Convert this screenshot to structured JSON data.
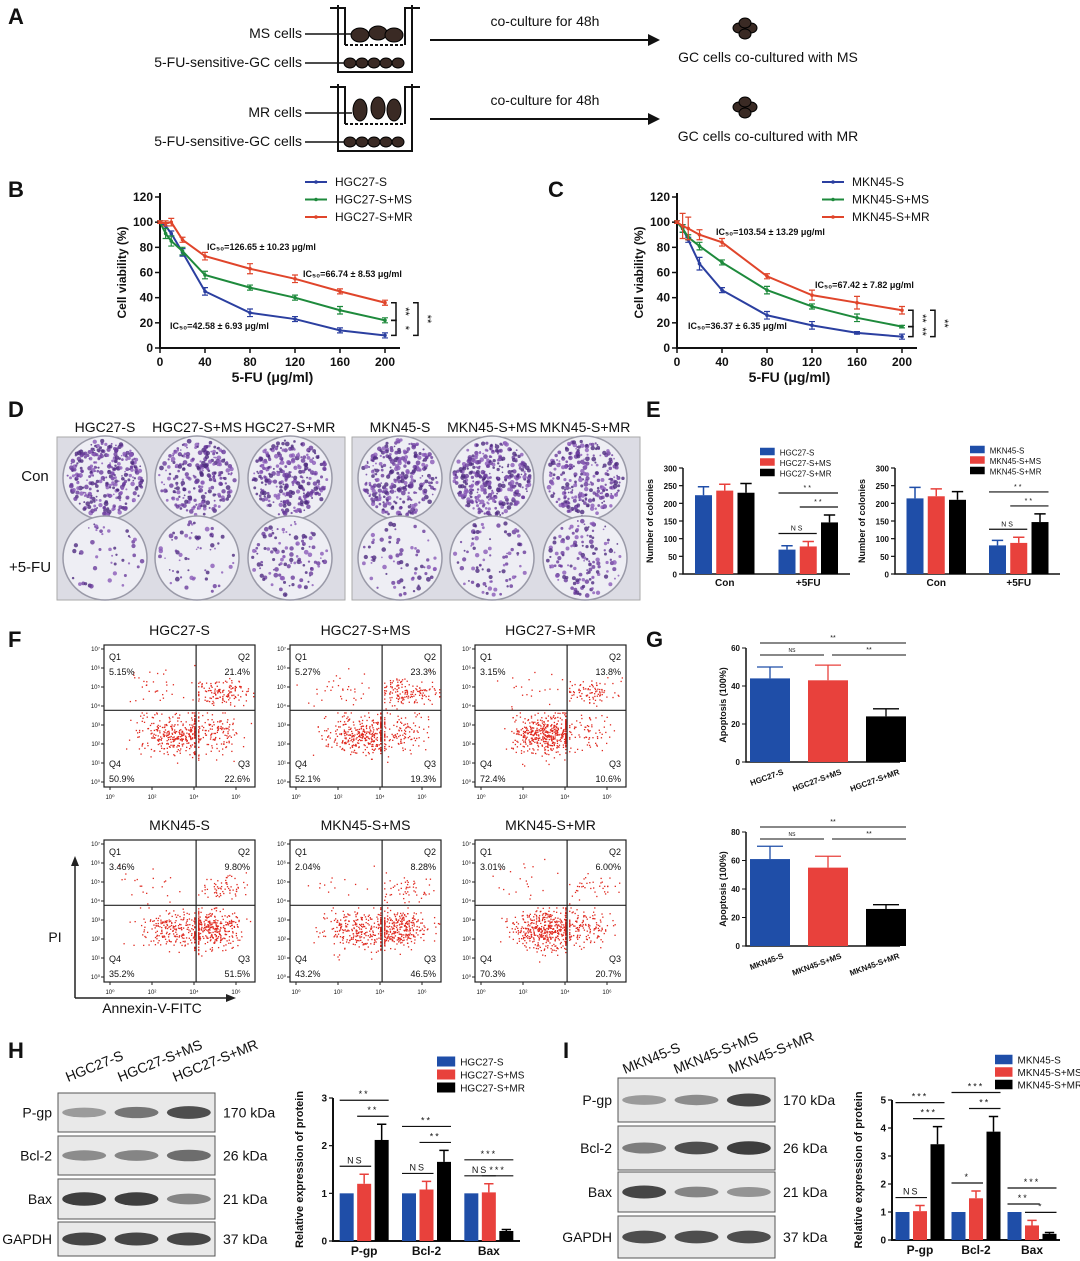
{
  "panel_labels": [
    "A",
    "B",
    "C",
    "D",
    "E",
    "F",
    "G",
    "H",
    "I"
  ],
  "panel_a": {
    "rows": [
      {
        "donor": "MS cells",
        "recipient": "5-FU-sensitive-GC cells",
        "arrow_label": "co-culture for 48h",
        "result": "GC cells co-cultured with MS"
      },
      {
        "donor": "MR cells",
        "recipient": "5-FU-sensitive-GC cells",
        "arrow_label": "co-culture for 48h",
        "result": "GC cells co-cultured with MR"
      }
    ]
  },
  "panel_d": {
    "headers": [
      "HGC27-S",
      "HGC27-S+MS",
      "HGC27-S+MR",
      "MKN45-S",
      "MKN45-S+MS",
      "MKN45-S+MR"
    ],
    "row_labels": [
      "Con",
      "+5-FU"
    ]
  },
  "panel_f": {
    "quadrant_names": [
      "Q1",
      "Q2",
      "Q3",
      "Q4"
    ],
    "x_ticks": [
      "10⁰",
      "10²",
      "10⁴",
      "10⁶"
    ],
    "y_ticks": [
      "10⁰",
      "10¹",
      "10²",
      "10³",
      "10⁴",
      "10⁵",
      "10⁶",
      "10⁷"
    ],
    "x_axis_label": "Annexin-V-FITC",
    "y_axis_label": "PI",
    "dot_color": "#e0281e",
    "plots": [
      {
        "title": "HGC27-S",
        "q1": "5.15%",
        "q2": "21.4%",
        "q3": "22.6%",
        "q4": "50.9%"
      },
      {
        "title": "HGC27-S+MS",
        "q1": "5.27%",
        "q2": "23.3%",
        "q3": "19.3%",
        "q4": "52.1%"
      },
      {
        "title": "HGC27-S+MR",
        "q1": "3.15%",
        "q2": "13.8%",
        "q3": "10.6%",
        "q4": "72.4%"
      },
      {
        "title": "MKN45-S",
        "q1": "3.46%",
        "q2": "9.80%",
        "q3": "51.5%",
        "q4": "35.2%"
      },
      {
        "title": "MKN45-S+MS",
        "q1": "2.04%",
        "q2": "8.28%",
        "q3": "46.5%",
        "q4": "43.2%"
      },
      {
        "title": "MKN45-S+MR",
        "q1": "3.01%",
        "q2": "6.00%",
        "q3": "20.7%",
        "q4": "70.3%"
      }
    ]
  },
  "panel_h": {
    "lanes": [
      "HGC27-S",
      "HGC27-S+MS",
      "HGC27-S+MR"
    ],
    "proteins": [
      "P-gp",
      "Bcl-2",
      "Bax",
      "GAPDH"
    ],
    "sizes": [
      "170 kDa",
      "26 kDa",
      "21 kDa",
      "37 kDa"
    ]
  },
  "panel_i": {
    "lanes": [
      "MKN45-S",
      "MKN45-S+MS",
      "MKN45-S+MR"
    ],
    "proteins": [
      "P-gp",
      "Bcl-2",
      "Bax",
      "GAPDH"
    ],
    "sizes": [
      "170 kDa",
      "26 kDa",
      "21 kDa",
      "37 kDa"
    ]
  },
  "chart_data": [
    {
      "panel": "B",
      "type": "line",
      "x": [
        0,
        5,
        10,
        20,
        40,
        80,
        120,
        160,
        200
      ],
      "xlabel": "5-FU (μg/ml)",
      "ylabel": "Cell viability (%)",
      "xlim": [
        0,
        200
      ],
      "ylim": [
        0,
        120
      ],
      "xticks": [
        0,
        40,
        80,
        120,
        160,
        200
      ],
      "yticks": [
        0,
        20,
        40,
        60,
        80,
        100,
        120
      ],
      "legend": "top-right",
      "series": [
        {
          "name": "HGC27-S",
          "color": "#2b3fa0",
          "values": [
            100,
            97,
            91,
            76,
            45,
            28,
            23,
            14,
            10
          ],
          "errors": [
            1,
            2,
            2,
            3,
            3,
            3,
            2,
            2,
            2
          ],
          "ic50": "IC₅₀=42.58 ± 6.93 μg/ml"
        },
        {
          "name": "HGC27-S+MS",
          "color": "#1e8a3c",
          "values": [
            100,
            91,
            85,
            77,
            58,
            48,
            40,
            30,
            22
          ],
          "errors": [
            1,
            4,
            4,
            3,
            3,
            2,
            2,
            3,
            2
          ],
          "ic50": "IC₅₀=66.74 ± 8.53 μg/ml"
        },
        {
          "name": "HGC27-S+MR",
          "color": "#e0452b",
          "values": [
            100,
            99,
            100,
            86,
            73,
            63,
            55,
            45,
            36
          ],
          "errors": [
            1,
            2,
            3,
            2,
            3,
            4,
            3,
            2,
            2
          ],
          "ic50": "IC₅₀=126.65 ± 10.23 μg/ml"
        }
      ],
      "significance": [
        {
          "a": 2,
          "b": 1,
          "label": "**"
        },
        {
          "a": 1,
          "b": 0,
          "label": "*"
        },
        {
          "a": 2,
          "b": 0,
          "label": "**"
        }
      ]
    },
    {
      "panel": "C",
      "type": "line",
      "x": [
        0,
        5,
        10,
        20,
        40,
        80,
        120,
        160,
        200
      ],
      "xlabel": "5-FU (μg/ml)",
      "ylabel": "Cell viability (%)",
      "xlim": [
        0,
        200
      ],
      "ylim": [
        0,
        120
      ],
      "xticks": [
        0,
        40,
        80,
        120,
        160,
        200
      ],
      "yticks": [
        0,
        20,
        40,
        60,
        80,
        100,
        120
      ],
      "legend": "top-right",
      "series": [
        {
          "name": "MKN45-S",
          "color": "#2b3fa0",
          "values": [
            100,
            95,
            86,
            67,
            46,
            26,
            18,
            12,
            9
          ],
          "errors": [
            1,
            3,
            2,
            5,
            2,
            3,
            3,
            1,
            2
          ],
          "ic50": "IC₅₀=36.37 ± 6.35 μg/ml"
        },
        {
          "name": "MKN45-S+MS",
          "color": "#1e8a3c",
          "values": [
            100,
            95,
            88,
            81,
            68,
            46,
            33,
            24,
            17
          ],
          "errors": [
            1,
            3,
            2,
            3,
            2,
            3,
            2,
            3,
            1
          ],
          "ic50": "IC₅₀=67.42 ± 7.82 μg/ml"
        },
        {
          "name": "MKN45-S+MR",
          "color": "#e0452b",
          "values": [
            100,
            97,
            95,
            90,
            84,
            57,
            42,
            36,
            30
          ],
          "errors": [
            1,
            10,
            9,
            4,
            3,
            2,
            4,
            5,
            3
          ],
          "ic50": "IC₅₀=103.54 ± 13.29 μg/ml"
        }
      ],
      "significance": [
        {
          "a": 2,
          "b": 1,
          "label": "**"
        },
        {
          "a": 1,
          "b": 0,
          "label": "**"
        },
        {
          "a": 2,
          "b": 0,
          "label": "**"
        }
      ]
    },
    {
      "panel": "E",
      "type": "bar",
      "categories": [
        "Con",
        "+5FU"
      ],
      "ylabel": "Number of colonies",
      "ylim": [
        0,
        300
      ],
      "yticks": [
        0,
        50,
        100,
        150,
        200,
        250,
        300
      ],
      "legend": "top-right",
      "series": [
        {
          "name": "HGC27-S",
          "color": "#1f4ea8",
          "values": [
            223,
            69
          ],
          "errors": [
            24,
            11
          ]
        },
        {
          "name": "HGC27-S+MS",
          "color": "#e8413c",
          "values": [
            236,
            78
          ],
          "errors": [
            18,
            14
          ]
        },
        {
          "name": "HGC27-S+MR",
          "color": "#000000",
          "values": [
            230,
            146
          ],
          "errors": [
            26,
            21
          ]
        }
      ],
      "significance": [
        {
          "cat": 1,
          "a": 0,
          "b": 1,
          "label": "NS"
        },
        {
          "cat": 1,
          "a": 1,
          "b": 2,
          "label": "**"
        },
        {
          "cat": 1,
          "a": 0,
          "b": 2,
          "label": "**"
        }
      ]
    },
    {
      "panel": "E",
      "type": "bar",
      "categories": [
        "Con",
        "+5FU"
      ],
      "ylabel": "Number of colonies",
      "ylim": [
        0,
        300
      ],
      "yticks": [
        0,
        50,
        100,
        150,
        200,
        250,
        300
      ],
      "legend": "top-right",
      "series": [
        {
          "name": "MKN45-S",
          "color": "#1f4ea8",
          "values": [
            214,
            81
          ],
          "errors": [
            31,
            14
          ]
        },
        {
          "name": "MKN45-S+MS",
          "color": "#e8413c",
          "values": [
            220,
            88
          ],
          "errors": [
            21,
            16
          ]
        },
        {
          "name": "MKN45-S+MR",
          "color": "#000000",
          "values": [
            210,
            147
          ],
          "errors": [
            23,
            23
          ]
        }
      ],
      "significance": [
        {
          "cat": 1,
          "a": 0,
          "b": 1,
          "label": "NS"
        },
        {
          "cat": 1,
          "a": 1,
          "b": 2,
          "label": "**"
        },
        {
          "cat": 1,
          "a": 0,
          "b": 2,
          "label": "**"
        }
      ]
    },
    {
      "panel": "G",
      "type": "bar",
      "categories": [
        "HGC27-S",
        "HGC27-S+MS",
        "HGC27-S+MR"
      ],
      "ylabel": "Apoptosis (100%)",
      "ylim": [
        0,
        60
      ],
      "yticks": [
        0,
        20,
        40,
        60
      ],
      "values": [
        44,
        43,
        24
      ],
      "errors": [
        6,
        8,
        4
      ],
      "colors": [
        "#1f4ea8",
        "#e8413c",
        "#000000"
      ],
      "significance": [
        {
          "a": 0,
          "b": 1,
          "label": "NS"
        },
        {
          "a": 1,
          "b": 2,
          "label": "**"
        },
        {
          "a": 0,
          "b": 2,
          "label": "**"
        }
      ]
    },
    {
      "panel": "G",
      "type": "bar",
      "categories": [
        "MKN45-S",
        "MKN45-S+MS",
        "MKN45-S+MR"
      ],
      "ylabel": "Apoptosis (100%)",
      "ylim": [
        0,
        80
      ],
      "yticks": [
        0,
        20,
        40,
        60,
        80
      ],
      "values": [
        61,
        55,
        26
      ],
      "errors": [
        9,
        8,
        3
      ],
      "colors": [
        "#1f4ea8",
        "#e8413c",
        "#000000"
      ],
      "significance": [
        {
          "a": 0,
          "b": 1,
          "label": "NS"
        },
        {
          "a": 1,
          "b": 2,
          "label": "**"
        },
        {
          "a": 0,
          "b": 2,
          "label": "**"
        }
      ]
    },
    {
      "panel": "H",
      "type": "bar",
      "categories": [
        "P-gp",
        "Bcl-2",
        "Bax"
      ],
      "ylabel": "Relative expression of protein",
      "ylim": [
        0,
        3
      ],
      "yticks": [
        0,
        1,
        2,
        3
      ],
      "legend": "top-right",
      "series": [
        {
          "name": "HGC27-S",
          "color": "#1f4ea8",
          "values": [
            1,
            1,
            1
          ],
          "errors": [
            0,
            0,
            0
          ]
        },
        {
          "name": "HGC27-S+MS",
          "color": "#e8413c",
          "values": [
            1.2,
            1.08,
            1.02
          ],
          "errors": [
            0.2,
            0.17,
            0.18
          ]
        },
        {
          "name": "HGC27-S+MR",
          "color": "#000000",
          "values": [
            2.12,
            1.66,
            0.21
          ],
          "errors": [
            0.33,
            0.24,
            0.03
          ]
        }
      ],
      "significance": [
        {
          "cat": 0,
          "a": 0,
          "b": 1,
          "label": "NS"
        },
        {
          "cat": 0,
          "a": 1,
          "b": 2,
          "label": "**"
        },
        {
          "cat": 0,
          "a": 0,
          "b": 2,
          "label": "**"
        },
        {
          "cat": 1,
          "a": 0,
          "b": 1,
          "label": "NS"
        },
        {
          "cat": 1,
          "a": 1,
          "b": 2,
          "label": "**"
        },
        {
          "cat": 1,
          "a": 0,
          "b": 2,
          "label": "**"
        },
        {
          "cat": 2,
          "a": 0,
          "b": 1,
          "label": "NS"
        },
        {
          "cat": 2,
          "a": 1,
          "b": 2,
          "label": "***"
        },
        {
          "cat": 2,
          "a": 0,
          "b": 2,
          "label": "***"
        }
      ]
    },
    {
      "panel": "I",
      "type": "bar",
      "categories": [
        "P-gp",
        "Bcl-2",
        "Bax"
      ],
      "ylabel": "Relative expression of protein",
      "ylim": [
        0,
        5
      ],
      "yticks": [
        0,
        1,
        2,
        3,
        4,
        5
      ],
      "legend": "top-right",
      "series": [
        {
          "name": "MKN45-S",
          "color": "#1f4ea8",
          "values": [
            1,
            1,
            1
          ],
          "errors": [
            0,
            0,
            0
          ]
        },
        {
          "name": "MKN45-S+MS",
          "color": "#e8413c",
          "values": [
            1.03,
            1.49,
            0.52
          ],
          "errors": [
            0.2,
            0.26,
            0.18
          ]
        },
        {
          "name": "MKN45-S+MR",
          "color": "#000000",
          "values": [
            3.42,
            3.87,
            0.22
          ],
          "errors": [
            0.63,
            0.54,
            0.05
          ]
        }
      ],
      "significance": [
        {
          "cat": 0,
          "a": 0,
          "b": 1,
          "label": "NS"
        },
        {
          "cat": 0,
          "a": 1,
          "b": 2,
          "label": "***"
        },
        {
          "cat": 0,
          "a": 0,
          "b": 2,
          "label": "***"
        },
        {
          "cat": 1,
          "a": 0,
          "b": 1,
          "label": "*"
        },
        {
          "cat": 1,
          "a": 1,
          "b": 2,
          "label": "**"
        },
        {
          "cat": 1,
          "a": 0,
          "b": 2,
          "label": "***"
        },
        {
          "cat": 2,
          "a": 0,
          "b": 1,
          "label": "**"
        },
        {
          "cat": 2,
          "a": 1,
          "b": 2,
          "label": "*"
        },
        {
          "cat": 2,
          "a": 0,
          "b": 2,
          "label": "***"
        }
      ]
    }
  ]
}
